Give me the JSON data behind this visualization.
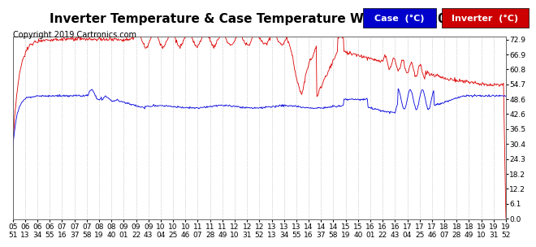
{
  "title": "Inverter Temperature & Case Temperature Wed Aug 7 20:03",
  "copyright": "Copyright 2019 Cartronics.com",
  "yticks": [
    0.0,
    6.1,
    12.2,
    18.2,
    24.3,
    30.4,
    36.5,
    42.6,
    48.6,
    54.7,
    60.8,
    66.9,
    72.9
  ],
  "bg_color": "#ffffff",
  "grid_color": "#aaaaaa",
  "case_color": "#0000dd",
  "inverter_color": "#dd0000",
  "legend_case_bg": "#0000cc",
  "legend_inverter_bg": "#cc0000",
  "x_labels": [
    "05:51",
    "06:13",
    "06:34",
    "06:55",
    "07:16",
    "07:37",
    "07:58",
    "08:19",
    "08:40",
    "09:01",
    "09:22",
    "09:43",
    "10:04",
    "10:25",
    "10:46",
    "11:07",
    "11:28",
    "11:49",
    "12:10",
    "12:31",
    "12:52",
    "13:13",
    "13:34",
    "13:55",
    "14:16",
    "14:37",
    "14:58",
    "15:19",
    "15:40",
    "16:01",
    "16:22",
    "16:43",
    "17:04",
    "17:25",
    "17:46",
    "18:07",
    "18:28",
    "18:49",
    "19:10",
    "19:31",
    "19:52"
  ],
  "title_fontsize": 11,
  "copyright_fontsize": 7,
  "tick_fontsize": 6.5,
  "legend_fontsize": 8
}
